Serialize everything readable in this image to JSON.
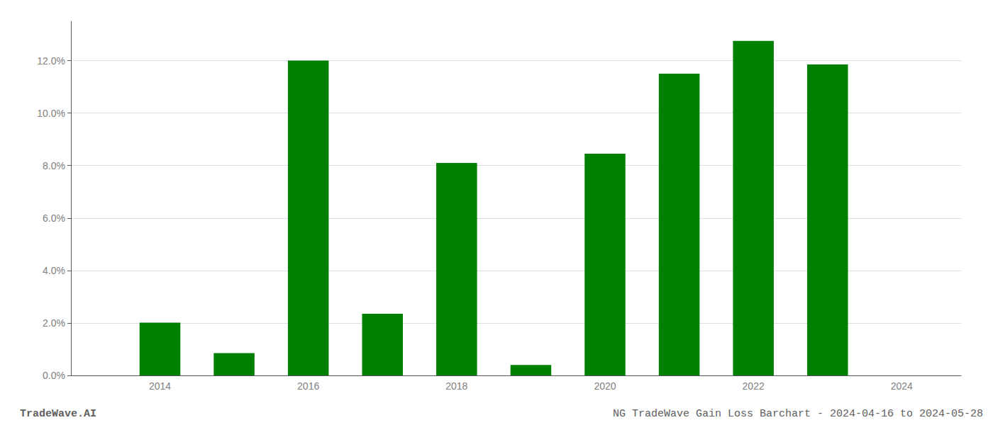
{
  "chart_data": {
    "type": "bar",
    "x": [
      2014,
      2015,
      2016,
      2017,
      2018,
      2019,
      2020,
      2021,
      2022,
      2023
    ],
    "values": [
      0.0201,
      0.0085,
      0.12,
      0.0235,
      0.081,
      0.004,
      0.0845,
      0.115,
      0.1275,
      0.1185
    ],
    "color": "#008000",
    "xlim": [
      2012.8,
      2024.8
    ],
    "xticks": [
      2014,
      2016,
      2018,
      2020,
      2022,
      2024
    ],
    "ylim": [
      0,
      0.135
    ],
    "yticks": [
      {
        "value": 0,
        "label": "0.0%"
      },
      {
        "value": 0.02,
        "label": "2.0%"
      },
      {
        "value": 0.04,
        "label": "4.0%"
      },
      {
        "value": 0.06,
        "label": "6.0%"
      },
      {
        "value": 0.08,
        "label": "8.0%"
      },
      {
        "value": 0.1,
        "label": "10.0%"
      },
      {
        "value": 0.12,
        "label": "12.0%"
      }
    ],
    "grid": true,
    "annotations": [
      "TradeWave.AI",
      "NG TradeWave Gain Loss Barchart - 2024-04-16 to 2024-05-28"
    ]
  }
}
